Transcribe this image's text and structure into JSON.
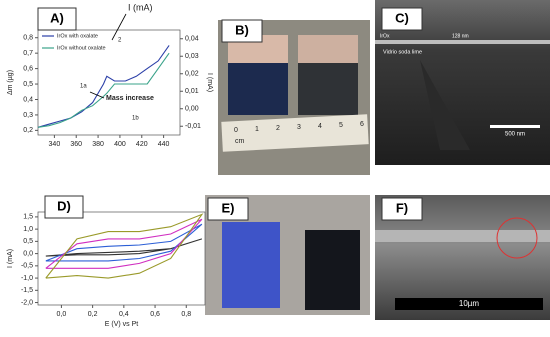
{
  "chart_data": [
    {
      "type": "line",
      "label": "A)",
      "ylabel": "Δm (µg)",
      "y2label": "I (mA)",
      "x": [
        325,
        335,
        345,
        355,
        365,
        375,
        385,
        388,
        395,
        405,
        415,
        425,
        435,
        445
      ],
      "series": [
        {
          "name": "IrOx with oxalate",
          "color": "#2b3fa8",
          "values": [
            0.22,
            0.24,
            0.26,
            0.28,
            0.32,
            0.38,
            0.5,
            0.55,
            0.52,
            0.52,
            0.55,
            0.6,
            0.65,
            0.75
          ]
        },
        {
          "name": "IrOx without oxalate",
          "color": "#3aa38a",
          "values": [
            0.22,
            0.23,
            0.25,
            0.28,
            0.33,
            0.36,
            0.42,
            0.44,
            0.5,
            0.5,
            0.5,
            0.5,
            0.6,
            0.7
          ]
        }
      ],
      "xlim": [
        325,
        455
      ],
      "xticks": [
        340,
        360,
        380,
        400,
        420,
        440
      ],
      "ylim": [
        0.17,
        0.85
      ],
      "yticks": [
        {
          "value": 0.2,
          "label": "0,2"
        },
        {
          "value": 0.3,
          "label": "0,3"
        },
        {
          "value": 0.4,
          "label": "0,4"
        },
        {
          "value": 0.5,
          "label": "0,5"
        },
        {
          "value": 0.6,
          "label": "0,6"
        },
        {
          "value": 0.7,
          "label": "0,7"
        },
        {
          "value": 0.8,
          "label": "0,8"
        }
      ],
      "y2lim": [
        -0.015,
        0.045
      ],
      "y2ticks": [
        {
          "value": -0.01,
          "label": "-0,01"
        },
        {
          "value": 0,
          "label": "0,00"
        },
        {
          "value": 0.01,
          "label": "0,01"
        },
        {
          "value": 0.02,
          "label": "0,02"
        },
        {
          "value": 0.03,
          "label": "0,03"
        },
        {
          "value": 0.04,
          "label": "0,04"
        }
      ],
      "annotations": [
        "I (mA)",
        "Mass increase",
        "1a",
        "1b",
        "2"
      ]
    },
    {
      "type": "line",
      "label": "D)",
      "xlabel": "E (V) vs Pt",
      "ylabel": "I (mA)",
      "x": [
        -0.1,
        0.1,
        0.3,
        0.5,
        0.7,
        0.9,
        0.7,
        0.5,
        0.3,
        0.1,
        -0.1
      ],
      "series": [
        {
          "color": "#333333",
          "values": [
            -0.1,
            0.0,
            0.05,
            0.1,
            0.2,
            0.6,
            0.2,
            0.0,
            -0.05,
            -0.05,
            -0.1
          ]
        },
        {
          "color": "#2c5fd6",
          "values": [
            -0.3,
            0.2,
            0.3,
            0.35,
            0.5,
            1.2,
            0.1,
            -0.2,
            -0.3,
            -0.3,
            -0.3
          ]
        },
        {
          "color": "#d02fc0",
          "values": [
            -0.6,
            0.4,
            0.6,
            0.6,
            0.8,
            1.4,
            0.0,
            -0.4,
            -0.6,
            -0.6,
            -0.6
          ]
        },
        {
          "color": "#9a9a2a",
          "values": [
            -1.0,
            0.6,
            0.9,
            0.9,
            1.1,
            1.6,
            -0.2,
            -0.8,
            -1.0,
            -0.9,
            -1.0
          ]
        }
      ],
      "xlim": [
        -0.15,
        0.92
      ],
      "xticks": [
        {
          "value": 0,
          "label": "0,0"
        },
        {
          "value": 0.2,
          "label": "0,2"
        },
        {
          "value": 0.4,
          "label": "0,4"
        },
        {
          "value": 0.6,
          "label": "0,6"
        },
        {
          "value": 0.8,
          "label": "0,8"
        }
      ],
      "ylim": [
        -2.1,
        1.7
      ],
      "yticks": [
        {
          "value": -2,
          "label": "-2,0"
        },
        {
          "value": -1.5,
          "label": "-1,5"
        },
        {
          "value": -1,
          "label": "-1,0"
        },
        {
          "value": -0.5,
          "label": "-0,5"
        },
        {
          "value": 0,
          "label": "0,0"
        },
        {
          "value": 0.5,
          "label": "0,5"
        },
        {
          "value": 1,
          "label": "1,0"
        },
        {
          "value": 1.5,
          "label": "1,5"
        }
      ]
    }
  ],
  "photos": {
    "B": {
      "label": "B)",
      "ruler_unit": "cm",
      "ruler_numbers": [
        "0",
        "1",
        "2",
        "3",
        "4",
        "5",
        "6"
      ]
    },
    "C": {
      "label": "C)",
      "layer": "IrOx",
      "thickness": "128 nm",
      "substrate": "Vidrio soda lime",
      "scale": "500 nm"
    },
    "E": {
      "label": "E)"
    },
    "F": {
      "label": "F)",
      "scale": "10µm"
    }
  }
}
